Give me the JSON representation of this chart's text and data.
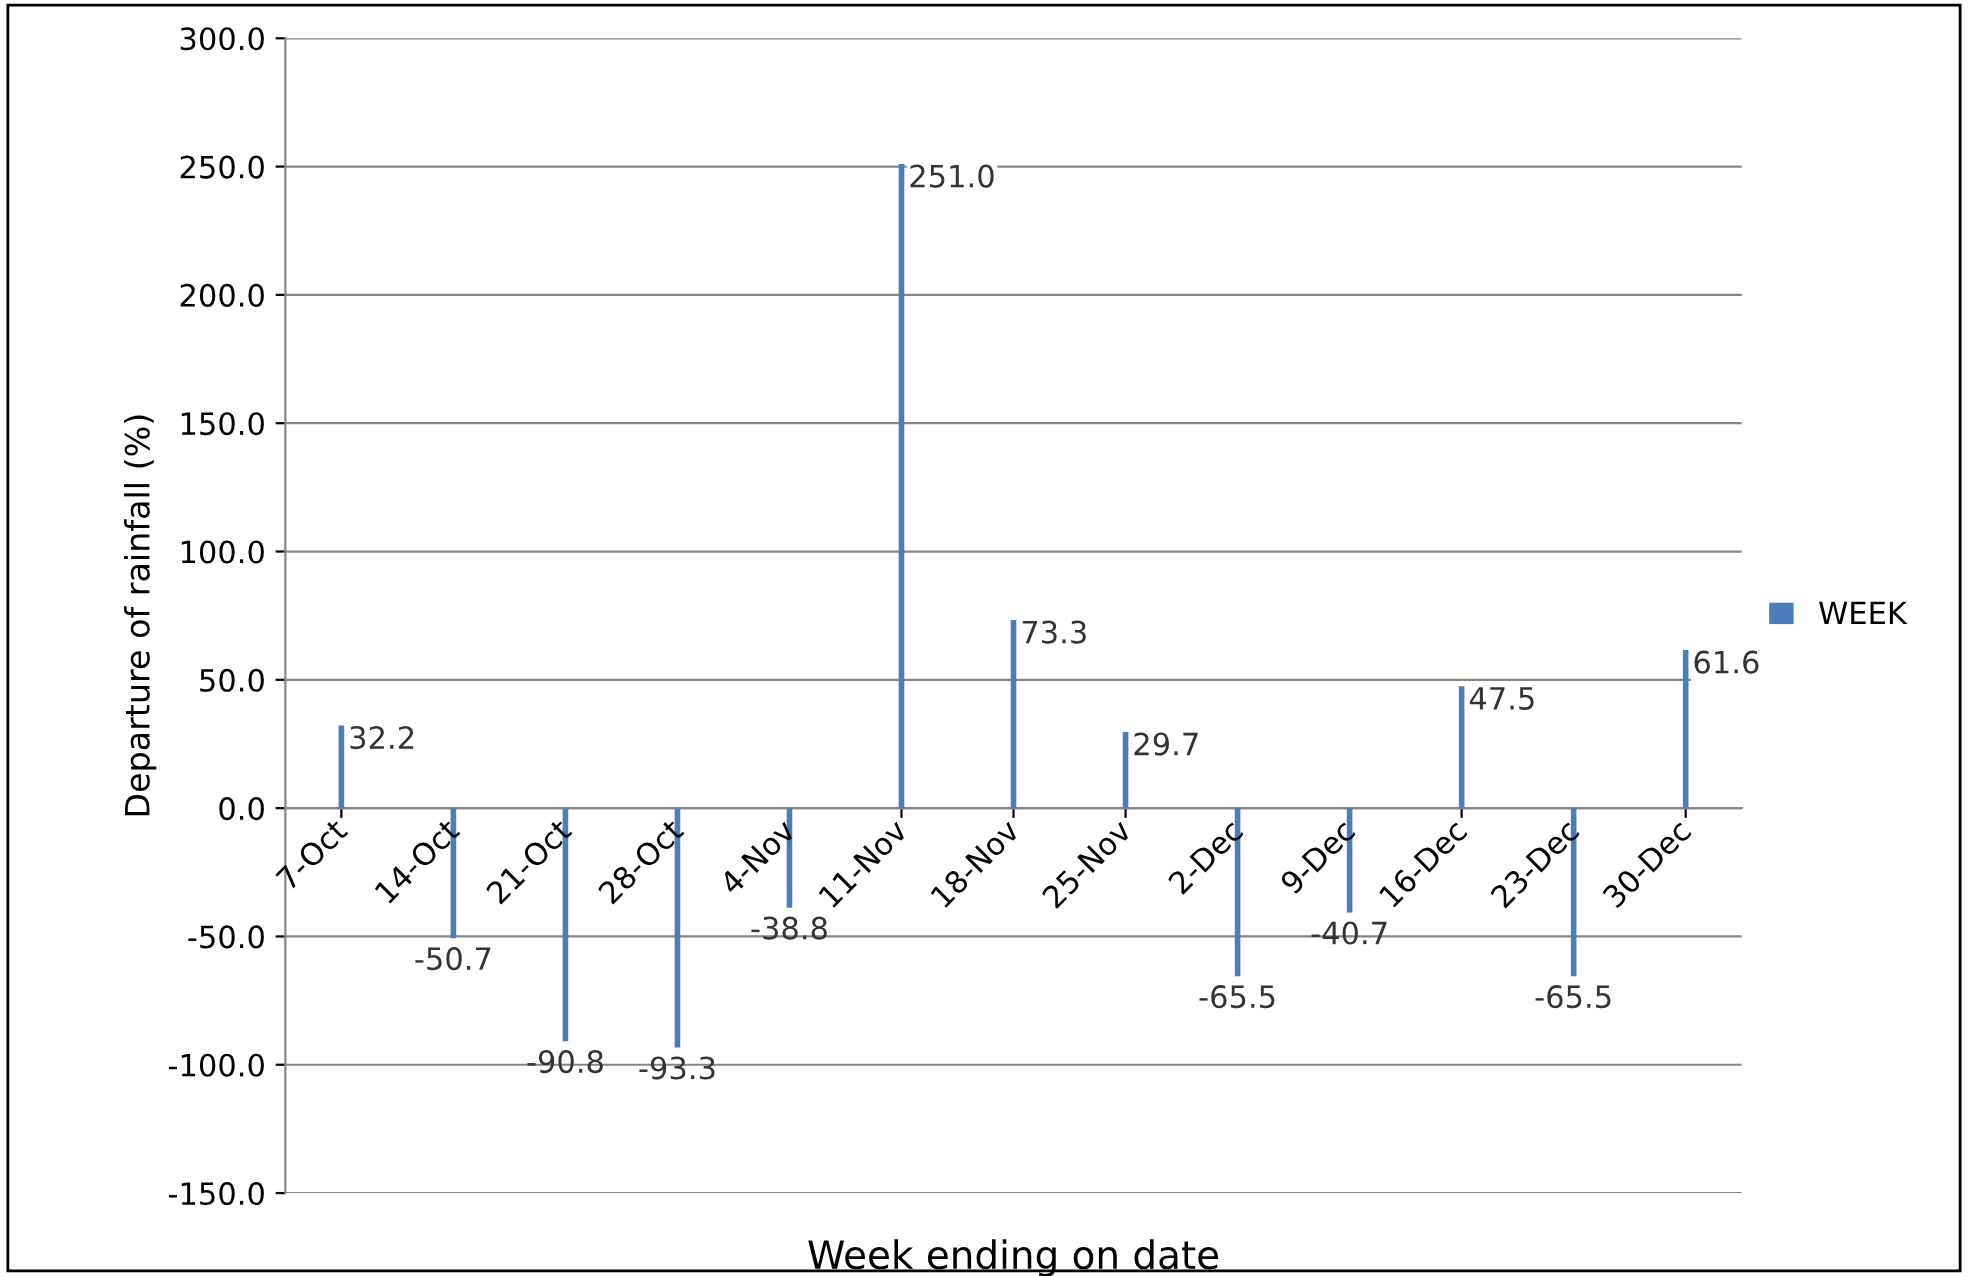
{
  "chart_data": {
    "type": "bar",
    "xlabel": "Week ending on date",
    "ylabel": "Departure of rainfall (%)",
    "categories": [
      "7-Oct",
      "14-Oct",
      "21-Oct",
      "28-Oct",
      "4-Nov",
      "11-Nov",
      "18-Nov",
      "25-Nov",
      "2-Dec",
      "9-Dec",
      "16-Dec",
      "23-Dec",
      "30-Dec"
    ],
    "series": [
      {
        "name": "WEEK",
        "color": "#4a7ebb",
        "values": [
          32.2,
          -50.7,
          -90.8,
          -93.3,
          -38.8,
          251.0,
          73.3,
          29.7,
          -65.5,
          -40.7,
          47.5,
          -65.5,
          61.6
        ]
      }
    ],
    "ylim": [
      -150,
      300
    ],
    "yticks": [
      {
        "value": -150,
        "label": "-150.0"
      },
      {
        "value": -100,
        "label": "-100.0"
      },
      {
        "value": -50,
        "label": "-50.0"
      },
      {
        "value": 0,
        "label": "0.0"
      },
      {
        "value": 50,
        "label": "50.0"
      },
      {
        "value": 100,
        "label": "100.0"
      },
      {
        "value": 150,
        "label": "150.0"
      },
      {
        "value": 200,
        "label": "200.0"
      },
      {
        "value": 250,
        "label": "250.0"
      },
      {
        "value": 300,
        "label": "300.0"
      }
    ],
    "value_labels": [
      "32.2",
      "-50.7",
      "-90.8",
      "-93.3",
      "-38.8",
      "251.0",
      "73.3",
      "29.7",
      "-65.5",
      "-40.7",
      "47.5",
      "-65.5",
      "61.6"
    ],
    "grid": "y",
    "legend": "right"
  }
}
